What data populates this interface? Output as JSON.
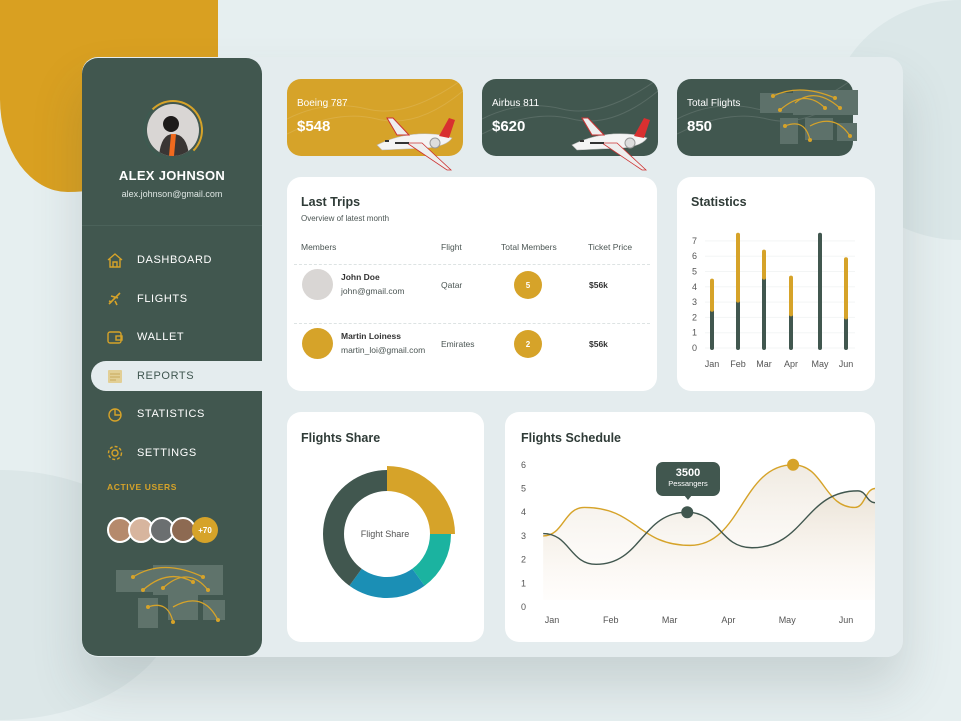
{
  "profile": {
    "name": "ALEX JOHNSON",
    "email": "alex.johnson@gmail.com"
  },
  "nav": [
    {
      "label": "DASHBOARD",
      "icon": "home-icon"
    },
    {
      "label": "FLIGHTS",
      "icon": "plane-icon"
    },
    {
      "label": "WALLET",
      "icon": "wallet-icon"
    },
    {
      "label": "REPORTS",
      "icon": "reports-icon",
      "active": true
    },
    {
      "label": "STATISTICS",
      "icon": "pie-chart-icon"
    },
    {
      "label": "SETTINGS",
      "icon": "gear-icon"
    }
  ],
  "active_users": {
    "label": "ACTIVE USERS",
    "more": "+70"
  },
  "summary": [
    {
      "label": "Boeing 787",
      "value": "$548",
      "color": "#d6a329"
    },
    {
      "label": "Airbus 811",
      "value": "$620",
      "color": "#41574f"
    },
    {
      "label": "Total Flights",
      "value": "850",
      "color": "#41574f"
    }
  ],
  "last_trips": {
    "title": "Last Trips",
    "subtitle": "Overview of latest month",
    "columns": [
      "Members",
      "Flight",
      "Total Members",
      "Ticket Price"
    ],
    "rows": [
      {
        "name": "John Doe",
        "email": "john@gmail.com",
        "flight": "Qatar",
        "members": "5",
        "price": "$56k"
      },
      {
        "name": "Martin Loiness",
        "email": "martin_loi@gmail.com",
        "flight": "Emirates",
        "members": "2",
        "price": "$56k"
      }
    ]
  },
  "colors": {
    "gold": "#d6a329",
    "dark": "#41574f",
    "teal": "#1bb3a0",
    "blue": "#1b8fb5"
  },
  "chart_data": [
    {
      "type": "bar",
      "title": "Statistics",
      "stacked": true,
      "categories": [
        "Jan",
        "Feb",
        "Mar",
        "Apr",
        "May",
        "Jun"
      ],
      "yticks": [
        "0",
        "1",
        "2",
        "3",
        "4",
        "5",
        "6",
        "7"
      ],
      "ylim": [
        0,
        7.5
      ],
      "series": [
        {
          "color": "#41574f",
          "values": [
            2.5,
            3.1,
            4.6,
            2.2,
            7.4,
            2.0
          ]
        },
        {
          "color": "#d6a329",
          "values": [
            1.9,
            4.3,
            1.7,
            2.4,
            0,
            3.8
          ]
        }
      ]
    },
    {
      "type": "pie",
      "title": "Flights Share",
      "center_label": "Flight Share",
      "values": [
        25,
        15,
        20,
        40
      ],
      "colors": [
        "#d6a329",
        "#1bb3a0",
        "#1b8fb5",
        "#41574f"
      ]
    },
    {
      "type": "line",
      "title": "Flights Schedule",
      "categories": [
        "Jan",
        "Feb",
        "Mar",
        "Apr",
        "May",
        "Jun"
      ],
      "yticks": [
        "0",
        "1",
        "2",
        "3",
        "4",
        "5",
        "6"
      ],
      "ylim": [
        0,
        6
      ],
      "series": [
        {
          "color": "#d6a329",
          "points": [
            [
              -0.15,
              3.0
            ],
            [
              0.55,
              4.2
            ],
            [
              2.35,
              2.6
            ],
            [
              4.1,
              6.0
            ],
            [
              5.15,
              4.2
            ],
            [
              5.5,
              5.0
            ]
          ]
        },
        {
          "color": "#41574f",
          "points": [
            [
              -0.15,
              3.1
            ],
            [
              0.75,
              1.8
            ],
            [
              2.3,
              4.0
            ],
            [
              3.4,
              2.5
            ],
            [
              5.2,
              4.9
            ],
            [
              5.5,
              4.4
            ]
          ]
        }
      ],
      "tooltip": {
        "value": "3500",
        "label": "Pessangers"
      }
    }
  ]
}
